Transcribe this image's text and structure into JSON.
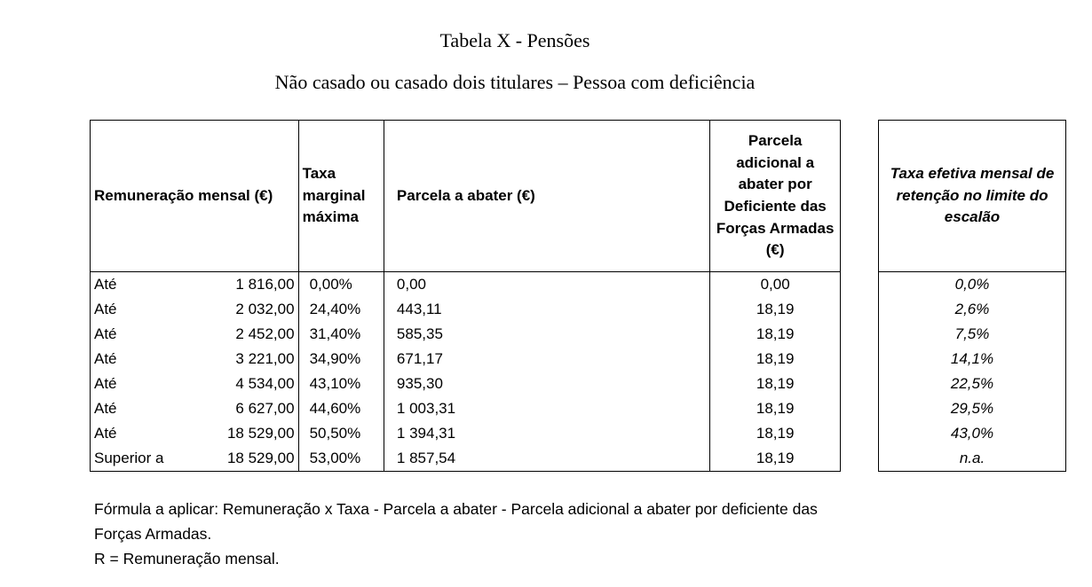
{
  "title": "Tabela X - Pensões",
  "subtitle": "Não casado ou casado dois titulares – Pessoa com deficiência",
  "headers": {
    "remuneracao": "Remuneração mensal (€)",
    "taxa": "Taxa marginal máxima",
    "parcela": "Parcela a abater (€)",
    "adicional": "Parcela adicional a abater por Deficiente das Forças Armadas (€)",
    "efetiva": "Taxa efetiva mensal de retenção no limite do escalão"
  },
  "rows": [
    {
      "label": "Até",
      "value": "1 816,00",
      "taxa": "0,00%",
      "parcela": "0,00",
      "adicional": "0,00",
      "efetiva": "0,0%"
    },
    {
      "label": "Até",
      "value": "2 032,00",
      "taxa": "24,40%",
      "parcela": "443,11",
      "adicional": "18,19",
      "efetiva": "2,6%"
    },
    {
      "label": "Até",
      "value": "2 452,00",
      "taxa": "31,40%",
      "parcela": "585,35",
      "adicional": "18,19",
      "efetiva": "7,5%"
    },
    {
      "label": "Até",
      "value": "3 221,00",
      "taxa": "34,90%",
      "parcela": "671,17",
      "adicional": "18,19",
      "efetiva": "14,1%"
    },
    {
      "label": "Até",
      "value": "4 534,00",
      "taxa": "43,10%",
      "parcela": "935,30",
      "adicional": "18,19",
      "efetiva": "22,5%"
    },
    {
      "label": "Até",
      "value": "6 627,00",
      "taxa": "44,60%",
      "parcela": "1 003,31",
      "adicional": "18,19",
      "efetiva": "29,5%"
    },
    {
      "label": "Até",
      "value": "18 529,00",
      "taxa": "50,50%",
      "parcela": "1 394,31",
      "adicional": "18,19",
      "efetiva": "43,0%"
    },
    {
      "label": "Superior a",
      "value": "18 529,00",
      "taxa": "53,00%",
      "parcela": "1 857,54",
      "adicional": "18,19",
      "efetiva": "n.a."
    }
  ],
  "notes": [
    "Fórmula a aplicar: Remuneração x Taxa - Parcela a abater - Parcela adicional a abater por deficiente das Forças Armadas.",
    "R = Remuneração mensal."
  ]
}
